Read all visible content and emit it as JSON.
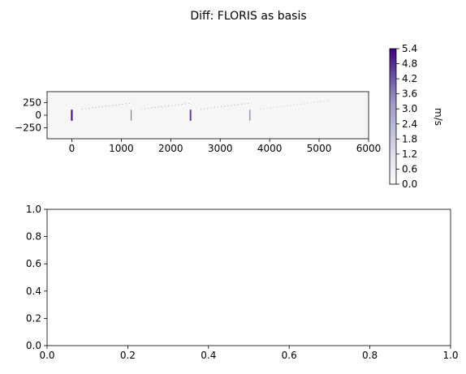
{
  "figure": {
    "title": "Diff: FLORIS as basis"
  },
  "chart_data": [
    {
      "type": "heatmap",
      "x_ticks": [
        "0",
        "1000",
        "2000",
        "3000",
        "4000",
        "5000",
        "6000"
      ],
      "x_tick_values": [
        0,
        1000,
        2000,
        3000,
        4000,
        5000,
        6000
      ],
      "y_ticks": [
        "250",
        "0",
        "−250"
      ],
      "y_tick_values": [
        250,
        0,
        -250
      ],
      "xlim": [
        -500,
        6000
      ],
      "ylim": [
        -470,
        470
      ],
      "turbines": [
        {
          "x": 0,
          "y_range": [
            -110,
            110
          ],
          "value": 5.4
        },
        {
          "x": 1200,
          "y_range": [
            -110,
            110
          ],
          "value": 3.0
        },
        {
          "x": 2400,
          "y_range": [
            -110,
            110
          ],
          "value": 4.2
        },
        {
          "x": 3600,
          "y_range": [
            -110,
            110
          ],
          "value": 3.0
        }
      ],
      "wake_traces": [
        {
          "x": [
            200,
            1200
          ],
          "y": [
            120,
            240
          ],
          "value": 1.8
        },
        {
          "x": [
            1400,
            2400
          ],
          "y": [
            120,
            240
          ],
          "value": 1.8
        },
        {
          "x": [
            2600,
            3600
          ],
          "y": [
            120,
            240
          ],
          "value": 1.8
        },
        {
          "x": [
            3800,
            5200
          ],
          "y": [
            120,
            290
          ],
          "value": 1.2
        }
      ],
      "colorbar": {
        "label": "m/s",
        "ticks": [
          "0.0",
          "0.6",
          "1.2",
          "1.8",
          "2.4",
          "3.0",
          "3.6",
          "4.2",
          "4.8",
          "5.4"
        ],
        "tick_values": [
          0.0,
          0.6,
          1.2,
          1.8,
          2.4,
          3.0,
          3.6,
          4.2,
          4.8,
          5.4
        ],
        "range": [
          0.0,
          5.4
        ],
        "colormap": "Purples",
        "color_low": "#fcfbfd",
        "color_high": "#3f007d"
      }
    },
    {
      "type": "line",
      "series": [],
      "x_ticks": [
        "0.0",
        "0.2",
        "0.4",
        "0.6",
        "0.8",
        "1.0"
      ],
      "x_tick_values": [
        0.0,
        0.2,
        0.4,
        0.6,
        0.8,
        1.0
      ],
      "y_ticks": [
        "0.0",
        "0.2",
        "0.4",
        "0.6",
        "0.8",
        "1.0"
      ],
      "y_tick_values": [
        0.0,
        0.2,
        0.4,
        0.6,
        0.8,
        1.0
      ],
      "xlim": [
        0,
        1
      ],
      "ylim": [
        0,
        1
      ]
    }
  ]
}
